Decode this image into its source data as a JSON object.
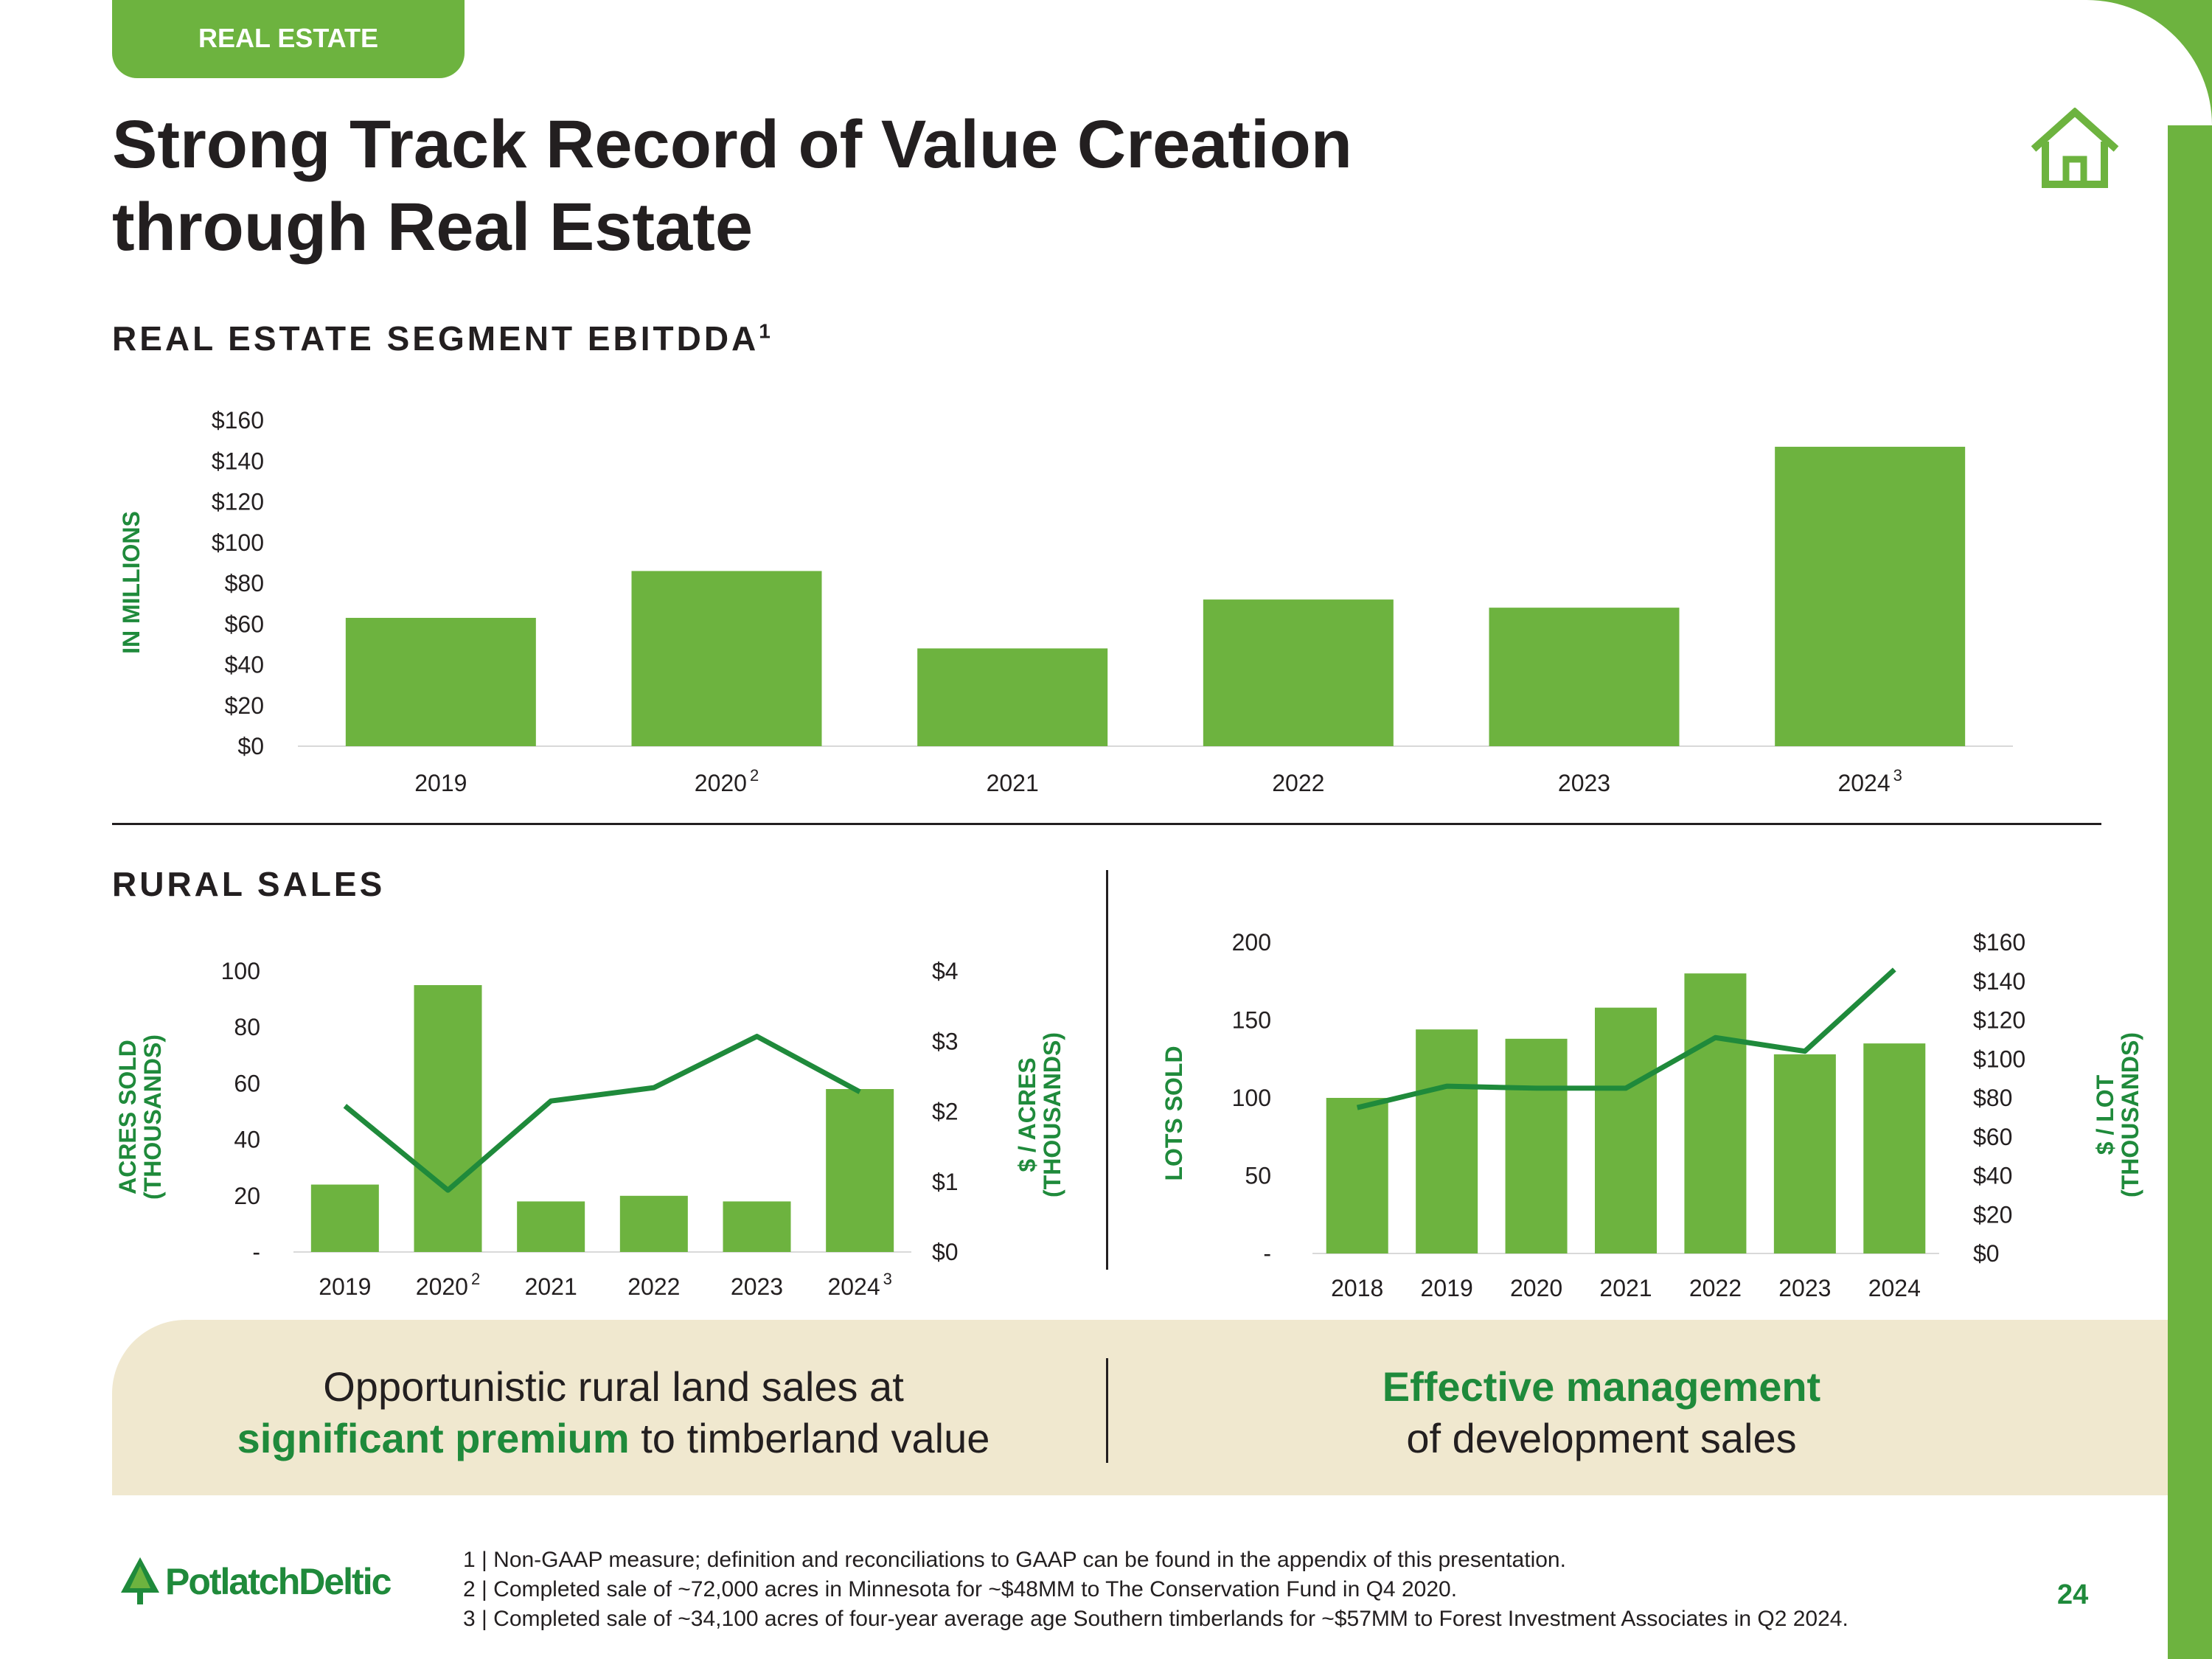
{
  "section_tab": "REAL ESTATE",
  "title_lines": [
    "Strong Track Record of Value Creation",
    "through Real Estate"
  ],
  "ebitdda_heading": "REAL ESTATE SEGMENT EBITDDA",
  "ebitdda_heading_sup": "1",
  "rural_heading": "RURAL SALES",
  "icons": {
    "home": "home-icon",
    "logo": "tree-logo-icon"
  },
  "colors": {
    "green": "#6db33f",
    "dark_green": "#1f8a3b",
    "band": "#f0e8cf"
  },
  "chart_data": [
    {
      "type": "bar",
      "title": "REAL ESTATE SEGMENT EBITDDA",
      "categories": [
        "2019",
        "2020",
        "2021",
        "2022",
        "2023",
        "2024"
      ],
      "category_superscripts": [
        "",
        "2",
        "",
        "",
        "",
        "3"
      ],
      "values": [
        63,
        86,
        48,
        72,
        68,
        147
      ],
      "ylabel": "IN MILLIONS",
      "ylim": [
        0,
        160
      ],
      "yticks": [
        0,
        20,
        40,
        60,
        80,
        100,
        120,
        140,
        160
      ],
      "ytick_labels": [
        "$0",
        "$20",
        "$40",
        "$60",
        "$80",
        "$100",
        "$120",
        "$140",
        "$160"
      ],
      "grid": false
    },
    {
      "type": "bar+line",
      "title": "RURAL SALES",
      "categories": [
        "2019",
        "2020",
        "2021",
        "2022",
        "2023",
        "2024"
      ],
      "category_superscripts": [
        "",
        "2",
        "",
        "",
        "",
        "3"
      ],
      "series": [
        {
          "name": "Acres sold (thousands)",
          "type": "bar",
          "axis": "left",
          "values": [
            24,
            95,
            18,
            20,
            18,
            58
          ]
        },
        {
          "name": "$ / acres (thousands)",
          "type": "line",
          "axis": "right",
          "values": [
            2.08,
            0.88,
            2.15,
            2.34,
            3.07,
            2.28
          ]
        }
      ],
      "ylabel_left": [
        "ACRES SOLD",
        "(THOUSANDS)"
      ],
      "ylim_left": [
        0,
        100
      ],
      "yticks_left": [
        0,
        20,
        40,
        60,
        80,
        100
      ],
      "ytick_labels_left": [
        "-",
        "20",
        "40",
        "60",
        "80",
        "100"
      ],
      "ylabel_right": [
        "$ / ACRES",
        "(THOUSANDS)"
      ],
      "ylim_right": [
        0,
        4
      ],
      "yticks_right": [
        0,
        1,
        2,
        3,
        4
      ],
      "ytick_labels_right": [
        "$0",
        "$1",
        "$2",
        "$3",
        "$4"
      ]
    },
    {
      "type": "bar+line",
      "title": "Lots sold",
      "categories": [
        "2018",
        "2019",
        "2020",
        "2021",
        "2022",
        "2023",
        "2024"
      ],
      "category_superscripts": [
        "",
        "",
        "",
        "",
        "",
        "",
        ""
      ],
      "series": [
        {
          "name": "Lots sold",
          "type": "bar",
          "axis": "left",
          "values": [
            100,
            144,
            138,
            158,
            180,
            128,
            135
          ]
        },
        {
          "name": "$ / lot (thousands)",
          "type": "line",
          "axis": "right",
          "values": [
            75,
            86,
            85,
            85,
            111,
            104,
            146
          ]
        }
      ],
      "ylabel_left": [
        "LOTS SOLD"
      ],
      "ylim_left": [
        0,
        200
      ],
      "yticks_left": [
        0,
        50,
        100,
        150,
        200
      ],
      "ytick_labels_left": [
        "-",
        "50",
        "100",
        "150",
        "200"
      ],
      "ylabel_right": [
        "$ / LOT",
        "(THOUSANDS)"
      ],
      "ylim_right": [
        0,
        160
      ],
      "yticks_right": [
        0,
        20,
        40,
        60,
        80,
        100,
        120,
        140,
        160
      ],
      "ytick_labels_right": [
        "$0",
        "$20",
        "$40",
        "$60",
        "$80",
        "$100",
        "$120",
        "$140",
        "$160"
      ]
    }
  ],
  "takeaways": {
    "left": {
      "line1": "Opportunistic rural land sales at",
      "highlight": "significant premium",
      "rest": " to timberland value"
    },
    "right": {
      "highlight": "Effective management",
      "line2": "of development sales"
    }
  },
  "logo_text": "PotlatchDeltic",
  "footnotes": [
    "1 | Non-GAAP measure; definition and reconciliations to GAAP can be found in the appendix of this presentation.",
    "2 | Completed sale of ~72,000 acres in Minnesota for ~$48MM to The Conservation Fund in Q4 2020.",
    "3 | Completed sale of ~34,100 acres of four-year average age Southern timberlands for ~$57MM to Forest Investment Associates in Q2 2024."
  ],
  "page_number": "24"
}
